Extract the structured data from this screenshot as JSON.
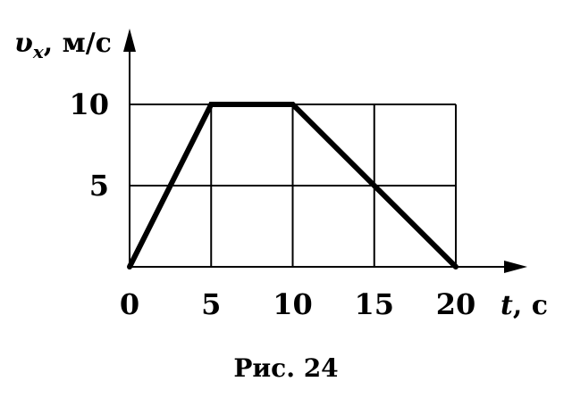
{
  "chart_data": {
    "type": "line",
    "x": [
      0,
      5,
      10,
      20
    ],
    "y": [
      0,
      10,
      10,
      0
    ],
    "xlim": [
      0,
      20
    ],
    "ylim": [
      0,
      10
    ],
    "x_ticks": [
      "0",
      "5",
      "10",
      "15",
      "20"
    ],
    "y_ticks": [
      "5",
      "10"
    ],
    "grid": true,
    "xlabel": {
      "symbol": "t",
      "unit": ", с"
    },
    "ylabel": {
      "symbol": "υ",
      "subscript": "x",
      "unit": ", м/с"
    }
  },
  "caption": "Рис. 24"
}
